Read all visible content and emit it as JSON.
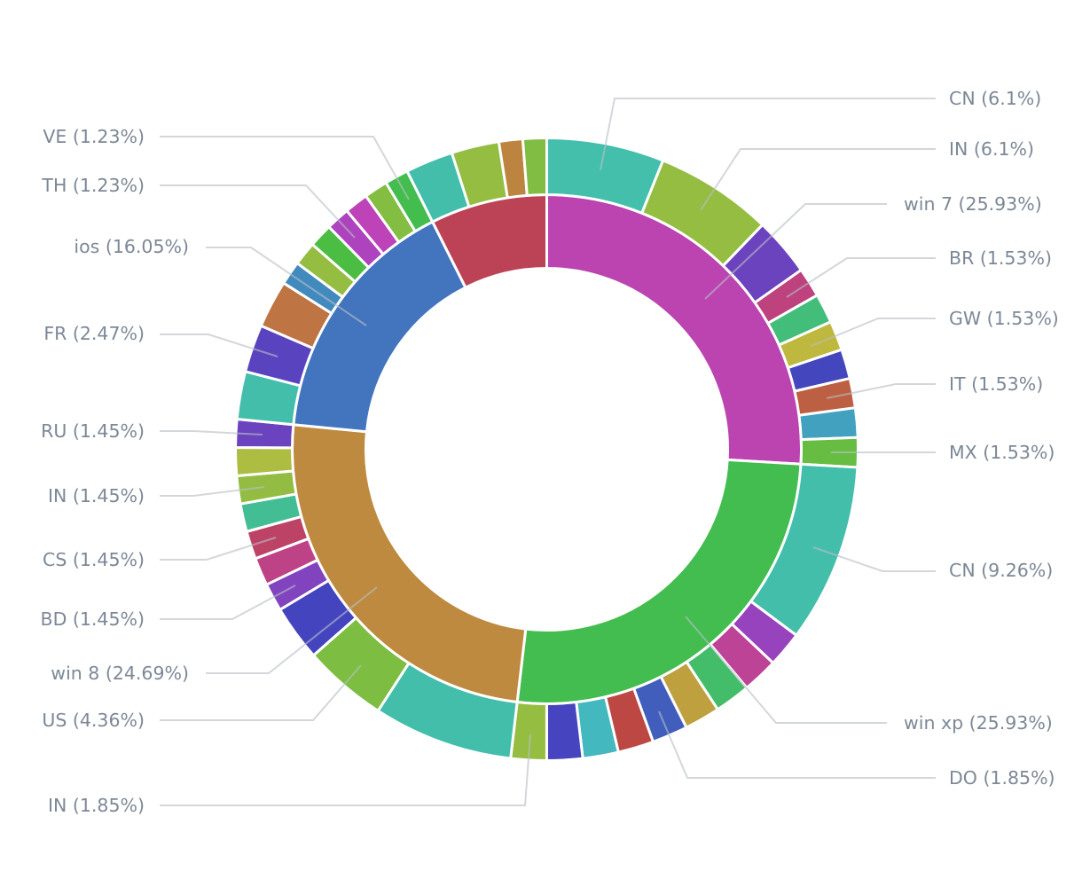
{
  "chart_data": {
    "type": "pie",
    "variant": "nested-donut",
    "title": "",
    "subtitle": "",
    "legend": "none",
    "value_unit": "percent of total",
    "inner_ring": [
      {
        "name": "win 7",
        "value": 25.93,
        "label": "win 7 (25.93%)",
        "color": "#bb44b0"
      },
      {
        "name": "win xp",
        "value": 25.93,
        "label": "win xp (25.93%)",
        "color": "#43bd4f"
      },
      {
        "name": "win 8",
        "value": 24.69,
        "label": "win 8 (24.69%)",
        "color": "#be8a40"
      },
      {
        "name": "ios",
        "value": 16.05,
        "label": "ios (16.05%)",
        "color": "#4275be"
      },
      {
        "name": null,
        "value": 7.41,
        "label": null,
        "color": "#bc4356"
      }
    ],
    "outer_ring": [
      {
        "parent": "win 7",
        "children": [
          {
            "name": "CN",
            "value": 6.1,
            "label": "CN (6.1%)",
            "color": "#43bfab"
          },
          {
            "name": "IN",
            "value": 6.1,
            "label": "IN (6.1%)",
            "color": "#95bd42"
          },
          {
            "name": null,
            "value": 3.05,
            "label": null,
            "color": "#6c43be"
          },
          {
            "name": "BR",
            "value": 1.53,
            "label": "BR (1.53%)",
            "color": "#bd427d"
          },
          {
            "name": null,
            "value": 1.53,
            "label": null,
            "color": "#43bd7a"
          },
          {
            "name": "GW",
            "value": 1.53,
            "label": "GW (1.53%)",
            "color": "#beb83f"
          },
          {
            "name": null,
            "value": 1.53,
            "label": null,
            "color": "#4446bd"
          },
          {
            "name": "IT",
            "value": 1.53,
            "label": "IT (1.53%)",
            "color": "#bd5f42"
          },
          {
            "name": null,
            "value": 1.53,
            "label": null,
            "color": "#42a1be"
          },
          {
            "name": "MX",
            "value": 1.53,
            "label": "MX (1.53%)",
            "color": "#67bd42"
          }
        ]
      },
      {
        "parent": "win xp",
        "children": [
          {
            "name": "CN",
            "value": 9.26,
            "label": "CN (9.26%)",
            "color": "#43beab"
          },
          {
            "name": null,
            "value": 1.85,
            "label": null,
            "color": "#9843be"
          },
          {
            "name": null,
            "value": 1.85,
            "label": null,
            "color": "#bd4397"
          },
          {
            "name": null,
            "value": 1.85,
            "label": null,
            "color": "#43bd6a"
          },
          {
            "name": null,
            "value": 1.85,
            "label": null,
            "color": "#bea03f"
          },
          {
            "name": "DO",
            "value": 1.85,
            "label": "DO (1.85%)",
            "color": "#415ebd"
          },
          {
            "name": null,
            "value": 1.85,
            "label": null,
            "color": "#bd4743"
          },
          {
            "name": null,
            "value": 1.85,
            "label": null,
            "color": "#43b8be"
          },
          {
            "name": null,
            "value": 1.85,
            "label": null,
            "color": "#4644be"
          },
          {
            "name": "IN",
            "value": 1.85,
            "label": "IN (1.85%)",
            "color": "#95bd42"
          }
        ]
      },
      {
        "parent": "win 8",
        "children": [
          {
            "name": null,
            "value": 7.26,
            "label": null,
            "color": "#43beab"
          },
          {
            "name": "US",
            "value": 4.36,
            "label": "US (4.36%)",
            "color": "#7cbd42"
          },
          {
            "name": null,
            "value": 2.9,
            "label": null,
            "color": "#4444be"
          },
          {
            "name": "BD",
            "value": 1.45,
            "label": "BD (1.45%)",
            "color": "#8243be"
          },
          {
            "name": null,
            "value": 1.45,
            "label": null,
            "color": "#be4386"
          },
          {
            "name": "CS",
            "value": 1.45,
            "label": "CS (1.45%)",
            "color": "#bd4366"
          },
          {
            "name": null,
            "value": 1.45,
            "label": null,
            "color": "#43be94"
          },
          {
            "name": "IN",
            "value": 1.45,
            "label": "IN (1.45%)",
            "color": "#92bd42"
          },
          {
            "name": null,
            "value": 1.45,
            "label": null,
            "color": "#adbd42"
          },
          {
            "name": "RU",
            "value": 1.45,
            "label": "RU (1.45%)",
            "color": "#6c43be"
          }
        ]
      },
      {
        "parent": "ios",
        "children": [
          {
            "name": null,
            "value": 2.47,
            "label": null,
            "color": "#43beab"
          },
          {
            "name": "FR",
            "value": 2.47,
            "label": "FR (2.47%)",
            "color": "#5a43be"
          },
          {
            "name": null,
            "value": 2.47,
            "label": null,
            "color": "#be7443"
          },
          {
            "name": null,
            "value": 1.23,
            "label": null,
            "color": "#428abe"
          },
          {
            "name": null,
            "value": 1.23,
            "label": null,
            "color": "#95bd42"
          },
          {
            "name": null,
            "value": 1.23,
            "label": null,
            "color": "#4bbd42"
          },
          {
            "name": "TH",
            "value": 1.23,
            "label": "TH (1.23%)",
            "color": "#ae43be"
          },
          {
            "name": null,
            "value": 1.23,
            "label": null,
            "color": "#be43b8"
          },
          {
            "name": null,
            "value": 1.23,
            "label": null,
            "color": "#83bd42"
          },
          {
            "name": "VE",
            "value": 1.23,
            "label": "VE (1.23%)",
            "color": "#43bd4e"
          }
        ]
      },
      {
        "parent": null,
        "children": [
          {
            "name": null,
            "value": 2.47,
            "label": null,
            "color": "#43beab"
          },
          {
            "name": null,
            "value": 2.47,
            "label": null,
            "color": "#95bd42"
          },
          {
            "name": null,
            "value": 1.23,
            "label": null,
            "color": "#bd8440"
          },
          {
            "name": null,
            "value": 1.23,
            "label": null,
            "color": "#80bd42"
          }
        ]
      }
    ]
  }
}
